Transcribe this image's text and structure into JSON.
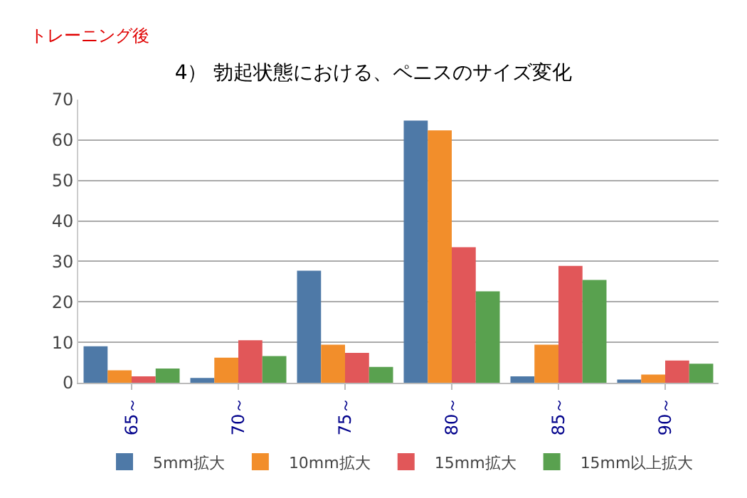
{
  "chart_data": {
    "type": "bar",
    "title": "4） 勃起状態における、ペニスのサイズ変化",
    "annotations": [
      "トレーニング後"
    ],
    "categories": [
      "65～",
      "70～",
      "75～",
      "80～",
      "85～",
      "90～"
    ],
    "series": [
      {
        "name": "5mm拡大",
        "color": "#4e79a7",
        "values": [
          9.0,
          1.2,
          27.7,
          64.8,
          1.6,
          0.8
        ]
      },
      {
        "name": "10mm拡大",
        "color": "#f28e2b",
        "values": [
          3.1,
          6.2,
          9.4,
          62.4,
          9.4,
          2.0
        ]
      },
      {
        "name": "15mm拡大",
        "color": "#e15759",
        "values": [
          1.6,
          10.5,
          7.4,
          33.5,
          28.9,
          5.5
        ]
      },
      {
        "name": "15mm以上拡大",
        "color": "#59a14f",
        "values": [
          3.5,
          6.6,
          3.9,
          22.6,
          25.4,
          4.7
        ]
      }
    ],
    "ylim": [
      0,
      70
    ],
    "yticks": [
      0,
      10,
      20,
      30,
      40,
      50,
      60,
      70
    ],
    "grid": "y",
    "legend": "bottom"
  }
}
